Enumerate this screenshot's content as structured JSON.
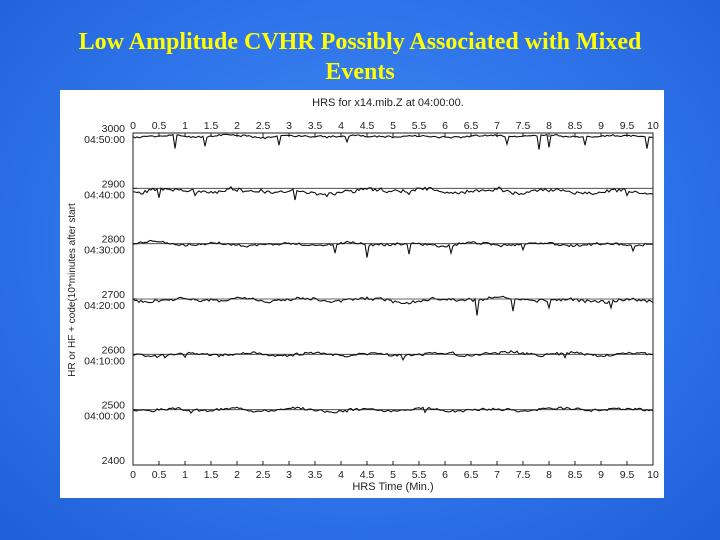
{
  "slide": {
    "title_line1": "Low Amplitude CVHR Possibly Associated with Mixed",
    "title_line2": "Events"
  },
  "colors": {
    "background": "#2f74ea",
    "title": "#ffff00",
    "plot_bg": "#ffffff",
    "trace": "#111111"
  },
  "chart_data": {
    "type": "line",
    "title": "HRS for x14.mib.Z at 04:00:00.",
    "xlabel": "HRS Time (Min.)",
    "ylabel": "HR or HF + code(10*minutes after start",
    "xlim": [
      0,
      10
    ],
    "ylim": [
      2400,
      3000
    ],
    "x_ticks": [
      "0",
      "0.5",
      "1",
      "1.5",
      "2",
      "2.5",
      "3",
      "3.5",
      "4",
      "4.5",
      "5",
      "5.5",
      "6",
      "6.5",
      "7",
      "7.5",
      "8",
      "8.5",
      "9",
      "9.5",
      "10"
    ],
    "y_ticks": [
      {
        "value": 3000,
        "label": "3000",
        "time": "04:50:00"
      },
      {
        "value": 2900,
        "label": "2900",
        "time": "04:40:00"
      },
      {
        "value": 2800,
        "label": "2800",
        "time": "04:30:00"
      },
      {
        "value": 2700,
        "label": "2700",
        "time": "04:20:00"
      },
      {
        "value": 2600,
        "label": "2600",
        "time": "04:10:00"
      },
      {
        "value": 2500,
        "label": "2500",
        "time": "04:00:00"
      },
      {
        "value": 2400,
        "label": "2400",
        "time": ""
      }
    ],
    "grid": "horizontal baselines",
    "series": [
      {
        "baseline": 3000,
        "offset": -6,
        "amp": 3,
        "seed": 11,
        "spikes": [
          [
            0.8,
            -22
          ],
          [
            1.4,
            -18
          ],
          [
            2.8,
            -16
          ],
          [
            4.1,
            -10
          ],
          [
            7.2,
            -14
          ],
          [
            7.8,
            -24
          ],
          [
            8.0,
            -20
          ],
          [
            8.7,
            -16
          ],
          [
            9.9,
            -22
          ]
        ]
      },
      {
        "baseline": 2900,
        "offset": -5,
        "amp": 6,
        "seed": 23,
        "spikes": [
          [
            0.5,
            -12
          ],
          [
            1.2,
            -8
          ],
          [
            3.1,
            -16
          ],
          [
            5.3,
            -6
          ],
          [
            7.3,
            -6
          ],
          [
            9.5,
            -8
          ]
        ]
      },
      {
        "baseline": 2800,
        "offset": -1,
        "amp": 4,
        "seed": 37,
        "spikes": [
          [
            3.9,
            -16
          ],
          [
            4.5,
            -24
          ],
          [
            5.3,
            -18
          ],
          [
            6.1,
            -16
          ],
          [
            7.5,
            -10
          ],
          [
            9.6,
            -12
          ]
        ]
      },
      {
        "baseline": 2700,
        "offset": -2,
        "amp": 5,
        "seed": 41,
        "spikes": [
          [
            6.6,
            -28
          ],
          [
            7.3,
            -20
          ],
          [
            8.0,
            -14
          ],
          [
            9.2,
            -14
          ]
        ]
      },
      {
        "baseline": 2600,
        "offset": 0,
        "amp": 4,
        "seed": 53,
        "spikes": [
          [
            0.6,
            -6
          ],
          [
            1.0,
            -5
          ],
          [
            5.2,
            -10
          ],
          [
            8.3,
            -6
          ]
        ]
      },
      {
        "baseline": 2500,
        "offset": 0,
        "amp": 4,
        "seed": 67,
        "spikes": [
          [
            1.1,
            -6
          ],
          [
            5.6,
            -5
          ]
        ]
      }
    ]
  }
}
